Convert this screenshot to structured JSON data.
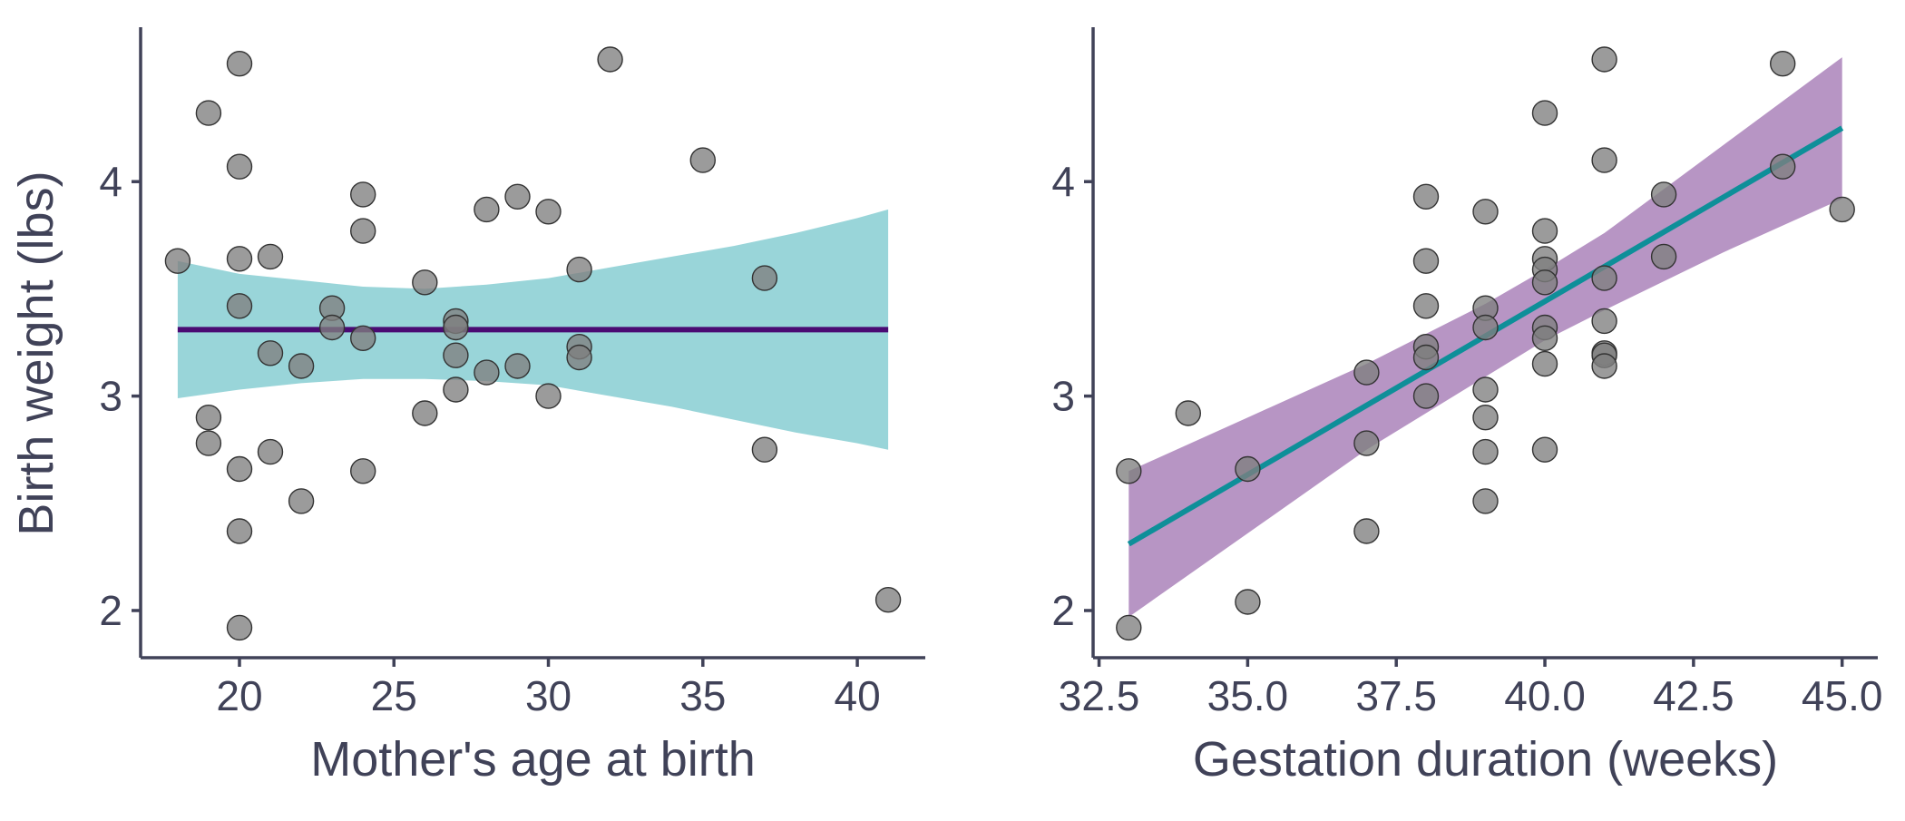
{
  "colors": {
    "axis": "#404258",
    "point_fill": "#7f7f7f",
    "point_stroke": "#333333",
    "teal": "#0e8f99",
    "teal_band": "#99d5d9",
    "purple": "#4a0a73",
    "purple_band": "#b795c4"
  },
  "chart_data": [
    {
      "type": "scatter",
      "title": "",
      "xlabel": "Mother's age at birth",
      "ylabel": "Birth weight (lbs)",
      "xlim": [
        16.8,
        42.2
      ],
      "ylim": [
        1.78,
        4.72
      ],
      "xticks": [
        20,
        25,
        30,
        35,
        40
      ],
      "xtick_labels": [
        "20",
        "25",
        "30",
        "35",
        "40"
      ],
      "yticks": [
        2,
        3,
        4
      ],
      "ytick_labels": [
        "2",
        "3",
        "4"
      ],
      "grid": false,
      "points": [
        [
          18,
          3.63
        ],
        [
          19,
          4.32
        ],
        [
          19,
          2.9
        ],
        [
          19,
          2.78
        ],
        [
          20,
          4.55
        ],
        [
          20,
          4.07
        ],
        [
          20,
          3.64
        ],
        [
          20,
          3.42
        ],
        [
          20,
          2.66
        ],
        [
          20,
          2.37
        ],
        [
          20,
          1.92
        ],
        [
          21,
          3.65
        ],
        [
          21,
          3.2
        ],
        [
          21,
          2.74
        ],
        [
          22,
          3.14
        ],
        [
          22,
          2.51
        ],
        [
          23,
          3.41
        ],
        [
          23,
          3.32
        ],
        [
          24,
          3.94
        ],
        [
          24,
          3.77
        ],
        [
          24,
          3.27
        ],
        [
          24,
          2.65
        ],
        [
          26,
          3.53
        ],
        [
          26,
          2.92
        ],
        [
          27,
          3.35
        ],
        [
          27,
          3.32
        ],
        [
          27,
          3.19
        ],
        [
          27,
          3.03
        ],
        [
          28,
          3.87
        ],
        [
          28,
          3.11
        ],
        [
          29,
          3.93
        ],
        [
          29,
          3.14
        ],
        [
          30,
          3.86
        ],
        [
          30,
          3.0
        ],
        [
          31,
          3.59
        ],
        [
          31,
          3.23
        ],
        [
          31,
          3.18
        ],
        [
          32,
          4.57
        ],
        [
          35,
          4.1
        ],
        [
          37,
          3.55
        ],
        [
          37,
          2.75
        ],
        [
          41,
          2.05
        ]
      ],
      "fit": {
        "x": [
          18,
          41
        ],
        "y": [
          3.31,
          3.31
        ]
      },
      "confidence_band": {
        "x": [
          18,
          20,
          22,
          24,
          26,
          28,
          30,
          32,
          34,
          36,
          38,
          40,
          41
        ],
        "lower": [
          2.99,
          3.03,
          3.06,
          3.08,
          3.08,
          3.07,
          3.05,
          3.0,
          2.95,
          2.89,
          2.83,
          2.78,
          2.75
        ],
        "upper": [
          3.63,
          3.57,
          3.54,
          3.51,
          3.5,
          3.52,
          3.55,
          3.6,
          3.65,
          3.7,
          3.76,
          3.83,
          3.87
        ]
      }
    },
    {
      "type": "scatter",
      "title": "",
      "xlabel": "Gestation duration (weeks)",
      "ylabel": "",
      "xlim": [
        32.4,
        45.6
      ],
      "ylim": [
        1.78,
        4.72
      ],
      "xticks": [
        32.5,
        35.0,
        37.5,
        40.0,
        42.5,
        45.0
      ],
      "xtick_labels": [
        "32.5",
        "35.0",
        "37.5",
        "40.0",
        "42.5",
        "45.0"
      ],
      "yticks": [
        2,
        3,
        4
      ],
      "ytick_labels": [
        "2",
        "3",
        "4"
      ],
      "grid": false,
      "points": [
        [
          33,
          2.65
        ],
        [
          33,
          1.92
        ],
        [
          34,
          2.92
        ],
        [
          35,
          2.66
        ],
        [
          35,
          2.04
        ],
        [
          37,
          3.11
        ],
        [
          37,
          2.78
        ],
        [
          37,
          2.37
        ],
        [
          38,
          3.93
        ],
        [
          38,
          3.63
        ],
        [
          38,
          3.42
        ],
        [
          38,
          3.23
        ],
        [
          38,
          3.18
        ],
        [
          38,
          3.0
        ],
        [
          39,
          3.86
        ],
        [
          39,
          3.41
        ],
        [
          39,
          3.32
        ],
        [
          39,
          3.03
        ],
        [
          39,
          2.9
        ],
        [
          39,
          2.74
        ],
        [
          39,
          2.51
        ],
        [
          40,
          4.32
        ],
        [
          40,
          3.77
        ],
        [
          40,
          3.64
        ],
        [
          40,
          3.59
        ],
        [
          40,
          3.53
        ],
        [
          40,
          3.32
        ],
        [
          40,
          3.27
        ],
        [
          40,
          3.15
        ],
        [
          40,
          2.75
        ],
        [
          41,
          4.57
        ],
        [
          41,
          4.1
        ],
        [
          41,
          3.55
        ],
        [
          41,
          3.35
        ],
        [
          41,
          3.2
        ],
        [
          41,
          3.19
        ],
        [
          41,
          3.14
        ],
        [
          42,
          3.94
        ],
        [
          42,
          3.65
        ],
        [
          44,
          4.55
        ],
        [
          44,
          4.07
        ],
        [
          45,
          3.87
        ]
      ],
      "fit": {
        "x": [
          33,
          45
        ],
        "y": [
          2.31,
          4.25
        ]
      },
      "confidence_band": {
        "x": [
          33,
          35,
          37,
          39,
          40,
          41,
          43,
          45
        ],
        "lower": [
          1.97,
          2.36,
          2.75,
          3.09,
          3.26,
          3.4,
          3.67,
          3.92
        ],
        "upper": [
          2.65,
          2.9,
          3.15,
          3.43,
          3.59,
          3.76,
          4.17,
          4.58
        ]
      }
    }
  ]
}
